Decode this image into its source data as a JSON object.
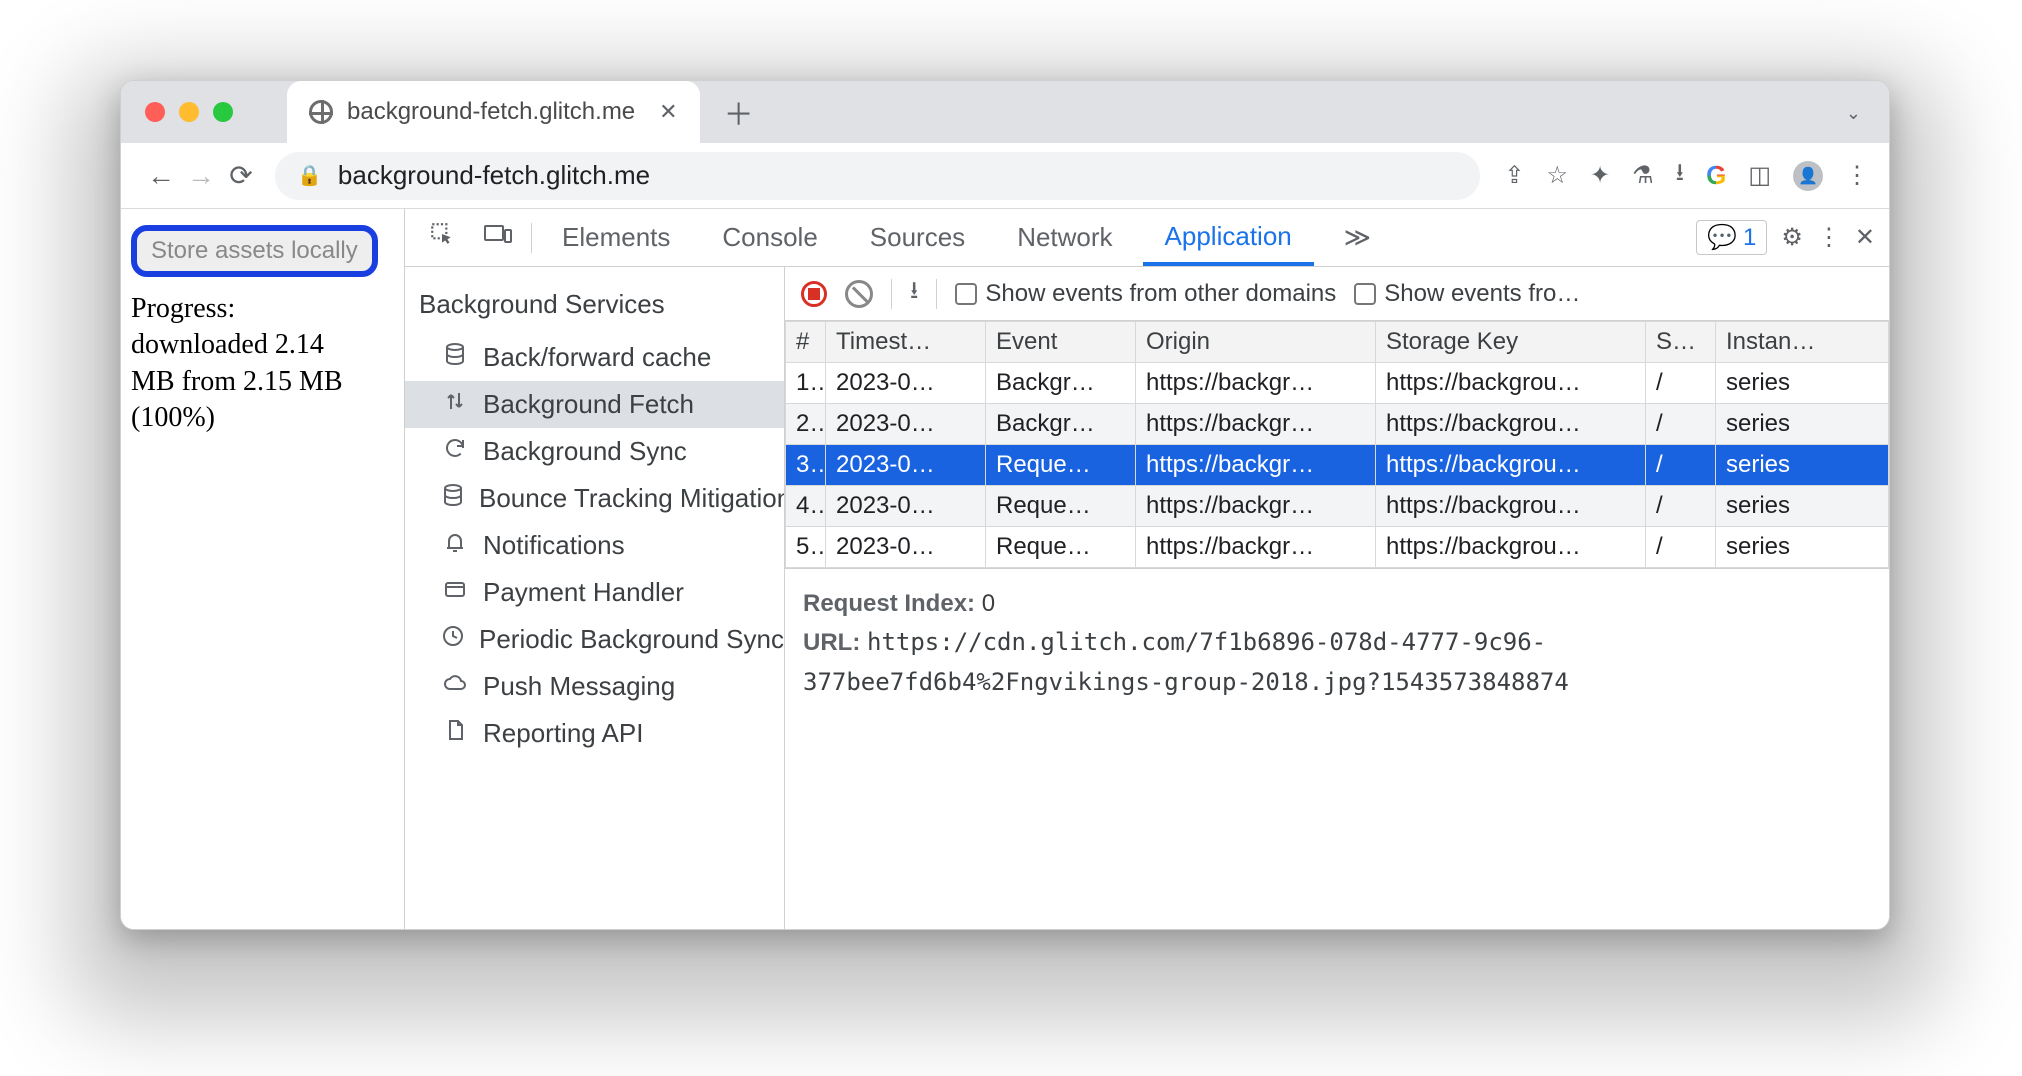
{
  "window": {
    "tab_title": "background-fetch.glitch.me",
    "url_display": "background-fetch.glitch.me"
  },
  "page": {
    "store_button": "Store assets locally",
    "progress_label": "Progress:",
    "progress_line1": "downloaded 2.14",
    "progress_line2": "MB from 2.15 MB",
    "progress_line3": "(100%)"
  },
  "devtools": {
    "tabs": {
      "elements": "Elements",
      "console": "Console",
      "sources": "Sources",
      "network": "Network",
      "application": "Application"
    },
    "more_tabs": "≫",
    "issues_count": "1",
    "sidebar": {
      "heading": "Background Services",
      "items": [
        {
          "icon": "db",
          "label": "Back/forward cache"
        },
        {
          "icon": "updown",
          "label": "Background Fetch",
          "selected": true
        },
        {
          "icon": "sync",
          "label": "Background Sync"
        },
        {
          "icon": "db",
          "label": "Bounce Tracking Mitigation"
        },
        {
          "icon": "bell",
          "label": "Notifications"
        },
        {
          "icon": "card",
          "label": "Payment Handler"
        },
        {
          "icon": "clock",
          "label": "Periodic Background Sync"
        },
        {
          "icon": "cloud",
          "label": "Push Messaging"
        },
        {
          "icon": "doc",
          "label": "Reporting API"
        }
      ]
    },
    "toolbar": {
      "show_other_domains": "Show events from other domains",
      "show_events_truncated": "Show events fro…"
    },
    "table": {
      "headers": {
        "n": "#",
        "timestamp": "Timest…",
        "event": "Event",
        "origin": "Origin",
        "storage_key": "Storage Key",
        "s": "S…",
        "instance": "Instan…"
      },
      "rows": [
        {
          "n": "1.",
          "t": "2023-0…",
          "e": "Backgr…",
          "o": "https://backgr…",
          "k": "https://backgrou…",
          "s": "/",
          "i": "series"
        },
        {
          "n": "2.",
          "t": "2023-0…",
          "e": "Backgr…",
          "o": "https://backgr…",
          "k": "https://backgrou…",
          "s": "/",
          "i": "series"
        },
        {
          "n": "3.",
          "t": "2023-0…",
          "e": "Reque…",
          "o": "https://backgr…",
          "k": "https://backgrou…",
          "s": "/",
          "i": "series",
          "selected": true
        },
        {
          "n": "4.",
          "t": "2023-0…",
          "e": "Reque…",
          "o": "https://backgr…",
          "k": "https://backgrou…",
          "s": "/",
          "i": "series"
        },
        {
          "n": "5.",
          "t": "2023-0…",
          "e": "Reque…",
          "o": "https://backgr…",
          "k": "https://backgrou…",
          "s": "/",
          "i": "series"
        }
      ]
    },
    "detail": {
      "request_index_label": "Request Index:",
      "request_index_value": "0",
      "url_label": "URL:",
      "url_value": "https://cdn.glitch.com/7f1b6896-078d-4777-9c96-377bee7fd6b4%2Fngvikings-group-2018.jpg?1543573848874"
    }
  },
  "colors": {
    "accent": "#1a73e8",
    "selection": "#1a63e0",
    "highlight_border": "#1a3fe0",
    "record": "#d93025"
  }
}
